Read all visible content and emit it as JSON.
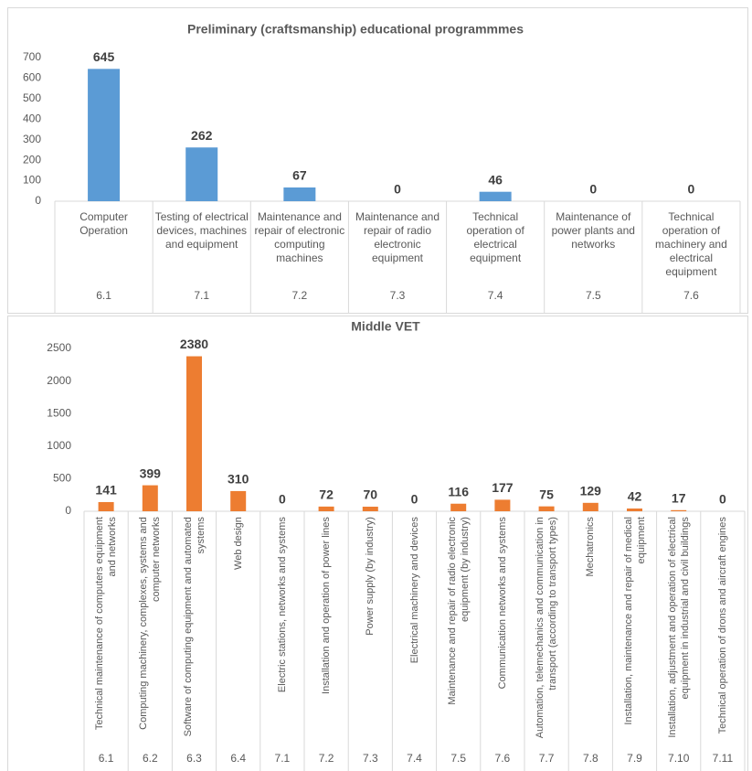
{
  "chart_data": [
    {
      "type": "bar",
      "title": "Preliminary (craftsmanship) educational programmmes",
      "categories": [
        "Computer Operation",
        "Testing of electrical devices, machines and equipment",
        "Maintenance and repair of electronic computing machines",
        "Maintenance and repair of radio electronic equipment",
        "Technical operation of electrical equipment",
        "Maintenance of power plants and networks",
        "Technical operation of machinery and electrical equipment"
      ],
      "codes": [
        "6.1",
        "7.1",
        "7.2",
        "7.3",
        "7.4",
        "7.5",
        "7.6"
      ],
      "values": [
        645,
        262,
        67,
        0,
        46,
        0,
        0
      ],
      "color": "#5b9bd5",
      "ylim": [
        0,
        700
      ],
      "yticks": [
        0,
        100,
        200,
        300,
        400,
        500,
        600,
        700
      ],
      "grid": false
    },
    {
      "type": "bar",
      "title": "Middle VET",
      "categories": [
        "Technical maintenance of computers equipment and networks",
        "Computing machinery, complexes, systems and computer networks",
        "Software of computing equipment and automated systems",
        "Web design",
        "Electric stations, networks and systems",
        "Installation and operation of power lines",
        "Power supply (by industry)",
        "Electrical machinery and devices",
        "Maintenance and repair of radio electronic equipment (by industry)",
        "Communication networks and systems",
        "Automation, telemechanics and communication in transport (according to transport types)",
        "Mechatronics",
        "Installation, maintenance and repair of medical equipment",
        "Installation, adjustment and operation of electrical equipment in industrial and civil buildings",
        "Technical operation of drons and aircraft engines"
      ],
      "codes": [
        "6.1",
        "6.2",
        "6.3",
        "6.4",
        "7.1",
        "7.2",
        "7.3",
        "7.4",
        "7.5",
        "7.6",
        "7.7",
        "7.8",
        "7.9",
        "7.10",
        "7.11"
      ],
      "values": [
        141,
        399,
        2380,
        310,
        0,
        72,
        70,
        0,
        116,
        177,
        75,
        129,
        42,
        17,
        0
      ],
      "color": "#ed7d31",
      "ylim": [
        0,
        2500
      ],
      "yticks": [
        0,
        500,
        1000,
        1500,
        2000,
        2500
      ],
      "grid": false
    }
  ]
}
